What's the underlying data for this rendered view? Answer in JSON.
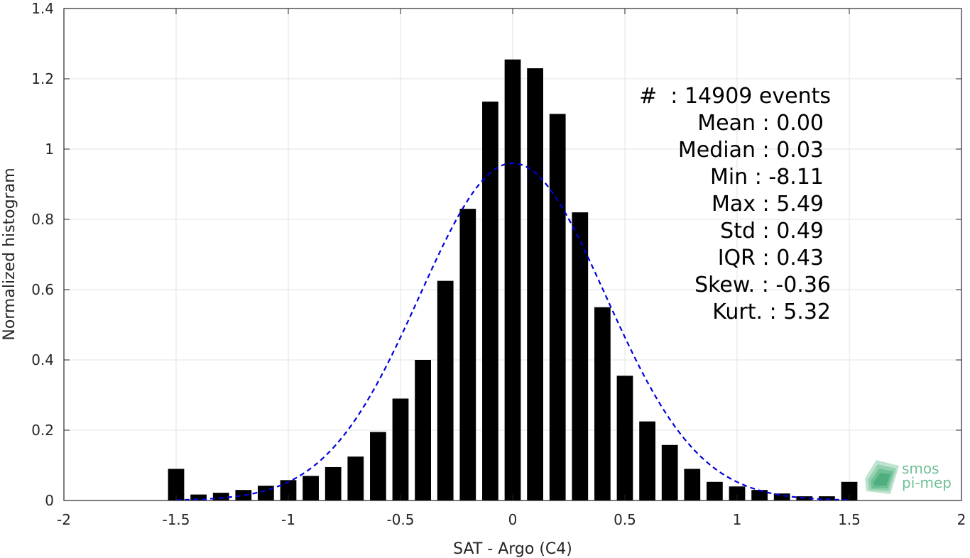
{
  "chart_data": {
    "type": "bar",
    "xlabel": "SAT - Argo (C4)",
    "ylabel": "Normalized histogram",
    "xlim": [
      -2,
      2
    ],
    "ylim": [
      0,
      1.4
    ],
    "x_ticks": [
      -2,
      -1.5,
      -1,
      -0.5,
      0,
      0.5,
      1,
      1.5,
      2
    ],
    "x_tick_labels": [
      "-2",
      "-1.5",
      "-1",
      "-0.5",
      "0",
      "0.5",
      "1",
      "1.5",
      "2"
    ],
    "y_ticks": [
      0,
      0.2,
      0.4,
      0.6,
      0.8,
      1,
      1.2,
      1.4
    ],
    "y_tick_labels": [
      "0",
      "0.2",
      "0.4",
      "0.6",
      "0.8",
      "1",
      "1.2",
      "1.4"
    ],
    "grid": true,
    "bar_color": "#000000",
    "bin_width": 0.1,
    "bins": [
      {
        "x": -1.5,
        "y": 0.09
      },
      {
        "x": -1.4,
        "y": 0.017
      },
      {
        "x": -1.3,
        "y": 0.022
      },
      {
        "x": -1.2,
        "y": 0.03
      },
      {
        "x": -1.1,
        "y": 0.042
      },
      {
        "x": -1.0,
        "y": 0.058
      },
      {
        "x": -0.9,
        "y": 0.07
      },
      {
        "x": -0.8,
        "y": 0.095
      },
      {
        "x": -0.7,
        "y": 0.125
      },
      {
        "x": -0.6,
        "y": 0.195
      },
      {
        "x": -0.5,
        "y": 0.29
      },
      {
        "x": -0.4,
        "y": 0.4
      },
      {
        "x": -0.3,
        "y": 0.625
      },
      {
        "x": -0.2,
        "y": 0.83
      },
      {
        "x": -0.1,
        "y": 1.135
      },
      {
        "x": 0.0,
        "y": 1.255
      },
      {
        "x": 0.1,
        "y": 1.23
      },
      {
        "x": 0.2,
        "y": 1.1
      },
      {
        "x": 0.3,
        "y": 0.82
      },
      {
        "x": 0.4,
        "y": 0.55
      },
      {
        "x": 0.5,
        "y": 0.355
      },
      {
        "x": 0.6,
        "y": 0.225
      },
      {
        "x": 0.7,
        "y": 0.158
      },
      {
        "x": 0.8,
        "y": 0.09
      },
      {
        "x": 0.9,
        "y": 0.053
      },
      {
        "x": 1.0,
        "y": 0.04
      },
      {
        "x": 1.1,
        "y": 0.03
      },
      {
        "x": 1.2,
        "y": 0.02
      },
      {
        "x": 1.3,
        "y": 0.012
      },
      {
        "x": 1.4,
        "y": 0.012
      },
      {
        "x": 1.5,
        "y": 0.053
      }
    ],
    "fit_curve": {
      "type": "gaussian",
      "mean": 0.0,
      "std": 0.415,
      "peak": 0.96,
      "x_range": [
        -1.5,
        1.5
      ],
      "color": "#0000dd",
      "style": "dashed"
    },
    "stats": [
      {
        "label": "#  : 14909 events",
        "align_shift": 0
      },
      {
        "label": "Mean : 0.00",
        "align_shift": 1
      },
      {
        "label": "Median : 0.03",
        "align_shift": 1
      },
      {
        "label": "Min : -8.11",
        "align_shift": 1
      },
      {
        "label": "Max : 5.49",
        "align_shift": 1
      },
      {
        "label": "Std : 0.49",
        "align_shift": 1
      },
      {
        "label": "IQR : 0.43",
        "align_shift": 1
      },
      {
        "label": "Skew. : -0.36",
        "align_shift": 0
      },
      {
        "label": "Kurt. : 5.32",
        "align_shift": 0
      }
    ]
  },
  "logo": {
    "line1": "smos",
    "line2": "pi-mep"
  }
}
